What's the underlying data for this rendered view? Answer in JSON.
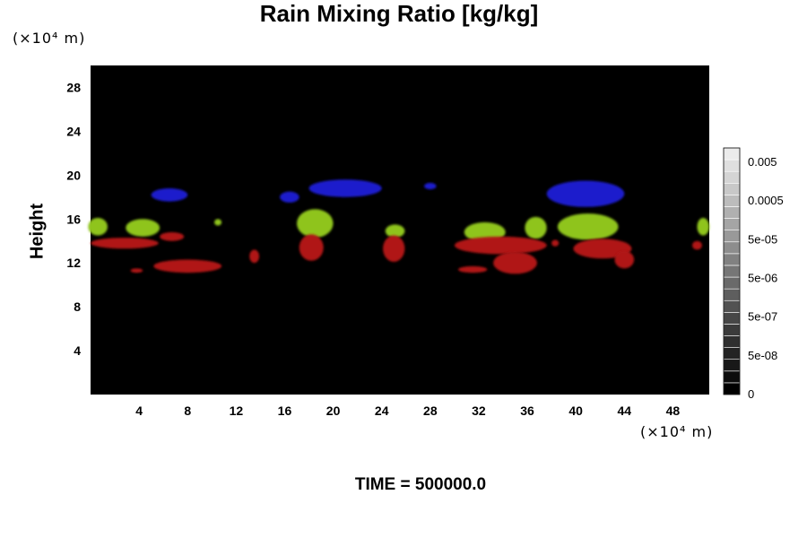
{
  "chart_data": {
    "type": "heatmap",
    "title": "Rain Mixing Ratio [kg/kg]",
    "ylabel": "Height",
    "x_unit": "(×10⁴ m)",
    "y_unit": "(×10⁴ m)",
    "footer": "TIME = 500000.0",
    "xlim": [
      0,
      51
    ],
    "ylim": [
      0,
      30
    ],
    "x_ticks": [
      "4",
      "8",
      "12",
      "16",
      "20",
      "24",
      "28",
      "32",
      "36",
      "40",
      "44",
      "48"
    ],
    "y_ticks": [
      "4",
      "8",
      "12",
      "16",
      "20",
      "24",
      "28"
    ],
    "background_color": "#000000",
    "colorbar": {
      "labels": [
        "0",
        "5e-08",
        "5e-07",
        "5e-06",
        "5e-05",
        "0.0005",
        "0.005"
      ],
      "levels": 21
    },
    "regions": [
      {
        "color": "#1a1acc",
        "cx": 6.5,
        "cy": 18.2,
        "rx": 1.5,
        "ry": 0.6
      },
      {
        "color": "#1a1acc",
        "cx": 16.4,
        "cy": 18.0,
        "rx": 0.8,
        "ry": 0.5
      },
      {
        "color": "#1a1acc",
        "cx": 21.0,
        "cy": 18.8,
        "rx": 3.0,
        "ry": 0.8
      },
      {
        "color": "#1a1acc",
        "cx": 28.0,
        "cy": 19.0,
        "rx": 0.5,
        "ry": 0.3
      },
      {
        "color": "#1a1acc",
        "cx": 40.8,
        "cy": 18.3,
        "rx": 3.2,
        "ry": 1.2
      },
      {
        "color": "#8fc41c",
        "cx": 0.6,
        "cy": 15.3,
        "rx": 0.8,
        "ry": 0.8
      },
      {
        "color": "#8fc41c",
        "cx": 4.3,
        "cy": 15.2,
        "rx": 1.4,
        "ry": 0.8
      },
      {
        "color": "#8fc41c",
        "cx": 10.5,
        "cy": 15.7,
        "rx": 0.3,
        "ry": 0.3
      },
      {
        "color": "#8fc41c",
        "cx": 18.5,
        "cy": 15.6,
        "rx": 1.5,
        "ry": 1.3
      },
      {
        "color": "#8fc41c",
        "cx": 25.1,
        "cy": 14.9,
        "rx": 0.8,
        "ry": 0.6
      },
      {
        "color": "#8fc41c",
        "cx": 32.5,
        "cy": 14.8,
        "rx": 1.7,
        "ry": 0.9
      },
      {
        "color": "#8fc41c",
        "cx": 36.7,
        "cy": 15.2,
        "rx": 0.9,
        "ry": 1.0
      },
      {
        "color": "#8fc41c",
        "cx": 41.0,
        "cy": 15.3,
        "rx": 2.5,
        "ry": 1.2
      },
      {
        "color": "#8fc41c",
        "cx": 50.5,
        "cy": 15.3,
        "rx": 0.5,
        "ry": 0.8
      },
      {
        "color": "#b01414",
        "cx": 2.8,
        "cy": 13.8,
        "rx": 2.8,
        "ry": 0.5
      },
      {
        "color": "#b01414",
        "cx": 6.7,
        "cy": 14.4,
        "rx": 1.0,
        "ry": 0.4
      },
      {
        "color": "#b01414",
        "cx": 8.0,
        "cy": 11.7,
        "rx": 2.8,
        "ry": 0.6
      },
      {
        "color": "#b01414",
        "cx": 3.8,
        "cy": 11.3,
        "rx": 0.5,
        "ry": 0.2
      },
      {
        "color": "#b01414",
        "cx": 13.5,
        "cy": 12.6,
        "rx": 0.4,
        "ry": 0.6
      },
      {
        "color": "#b01414",
        "cx": 18.2,
        "cy": 13.4,
        "rx": 1.0,
        "ry": 1.2
      },
      {
        "color": "#b01414",
        "cx": 25.0,
        "cy": 13.3,
        "rx": 0.9,
        "ry": 1.2
      },
      {
        "color": "#b01414",
        "cx": 31.5,
        "cy": 11.4,
        "rx": 1.2,
        "ry": 0.3
      },
      {
        "color": "#b01414",
        "cx": 33.8,
        "cy": 13.6,
        "rx": 3.8,
        "ry": 0.8
      },
      {
        "color": "#b01414",
        "cx": 35.0,
        "cy": 12.0,
        "rx": 1.8,
        "ry": 1.0
      },
      {
        "color": "#b01414",
        "cx": 38.3,
        "cy": 13.8,
        "rx": 0.3,
        "ry": 0.3
      },
      {
        "color": "#b01414",
        "cx": 42.2,
        "cy": 13.3,
        "rx": 2.4,
        "ry": 0.9
      },
      {
        "color": "#b01414",
        "cx": 44.0,
        "cy": 12.3,
        "rx": 0.8,
        "ry": 0.8
      },
      {
        "color": "#b01414",
        "cx": 50.0,
        "cy": 13.6,
        "rx": 0.4,
        "ry": 0.4
      }
    ]
  }
}
